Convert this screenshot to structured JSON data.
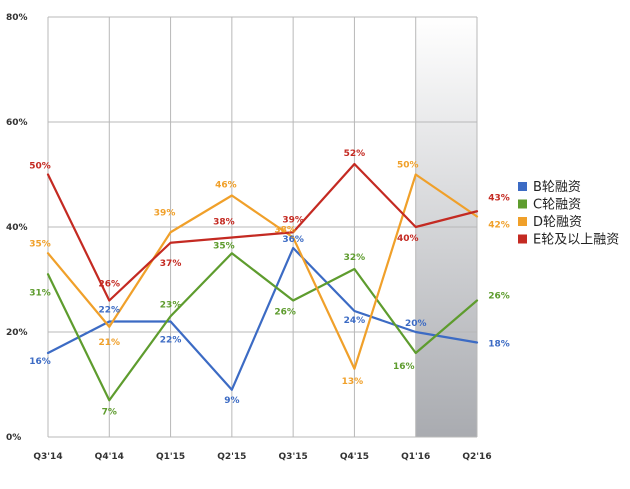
{
  "chart_data": {
    "type": "line",
    "categories": [
      "Q3'14",
      "Q4'14",
      "Q1'15",
      "Q2'15",
      "Q3'15",
      "Q4'15",
      "Q1'16",
      "Q2'16"
    ],
    "ylim": [
      0,
      80
    ],
    "y_ticks": [
      0,
      20,
      40,
      60,
      80
    ],
    "y_tick_labels": [
      "0%",
      "20%",
      "40%",
      "60%",
      "80%"
    ],
    "grid": true,
    "highlight_category": "Q2'16",
    "legend_position": "right",
    "series": [
      {
        "name": "B轮融资",
        "color": "#3c6bc4",
        "values": [
          16,
          22,
          22,
          9,
          36,
          24,
          20,
          18
        ],
        "labels": [
          "16%",
          "22%",
          "22%",
          "9%",
          "36%",
          "24%",
          "20%",
          "18%"
        ]
      },
      {
        "name": "C轮融资",
        "color": "#5e9c2e",
        "values": [
          31,
          7,
          23,
          35,
          26,
          32,
          16,
          26
        ],
        "labels": [
          "31%",
          "7%",
          "23%",
          "35%",
          "26%",
          "32%",
          "16%",
          "26%"
        ]
      },
      {
        "name": "D轮融资",
        "color": "#f0a02a",
        "values": [
          35,
          21,
          39,
          46,
          38,
          13,
          50,
          42
        ],
        "labels": [
          "35%",
          "21%",
          "39%",
          "46%",
          "38%",
          "13%",
          "50%",
          "42%"
        ]
      },
      {
        "name": "E轮及以上融资",
        "color": "#c42a22",
        "values": [
          50,
          26,
          37,
          38,
          39,
          52,
          40,
          43
        ],
        "labels": [
          "50%",
          "26%",
          "37%",
          "38%",
          "39%",
          "52%",
          "40%",
          "43%"
        ]
      }
    ]
  }
}
